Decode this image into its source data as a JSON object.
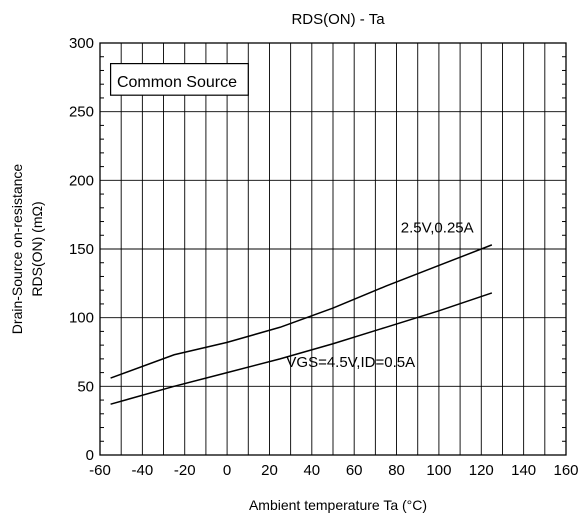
{
  "chart_data": {
    "type": "line",
    "title": "RDS(ON) - Ta",
    "xlabel": "Ambient temperature  Ta (°C)",
    "ylabel_line1": "Drain-Source on-resistance",
    "ylabel_line2": "RDS(ON) (mΩ)",
    "xlim": [
      -60,
      160
    ],
    "ylim": [
      0,
      300
    ],
    "x_ticks": [
      -60,
      -40,
      -20,
      0,
      20,
      40,
      60,
      80,
      100,
      120,
      140,
      160
    ],
    "x_tick_labels": [
      "-60",
      "-40",
      "-20",
      "0",
      "20",
      "40",
      "60",
      "80",
      "100",
      "120",
      "140",
      "160"
    ],
    "y_ticks": [
      0,
      50,
      100,
      150,
      200,
      250,
      300
    ],
    "y_tick_labels": [
      "0",
      "50",
      "100",
      "150",
      "200",
      "250",
      "300"
    ],
    "x_minor_step": 10,
    "y_minor_step": 10,
    "grid": true,
    "annotation_box": "Common Source",
    "series": [
      {
        "name": "2.5V,0.25A",
        "x": [
          -55,
          -25,
          0,
          25,
          50,
          75,
          100,
          125
        ],
        "y": [
          56,
          73,
          82,
          93,
          107,
          123,
          138,
          153
        ]
      },
      {
        "name": "VGS=4.5V,ID=0.5A",
        "x": [
          -55,
          -25,
          0,
          25,
          50,
          75,
          100,
          125
        ],
        "y": [
          37,
          50,
          60,
          70,
          81,
          93,
          105,
          118
        ]
      }
    ]
  }
}
